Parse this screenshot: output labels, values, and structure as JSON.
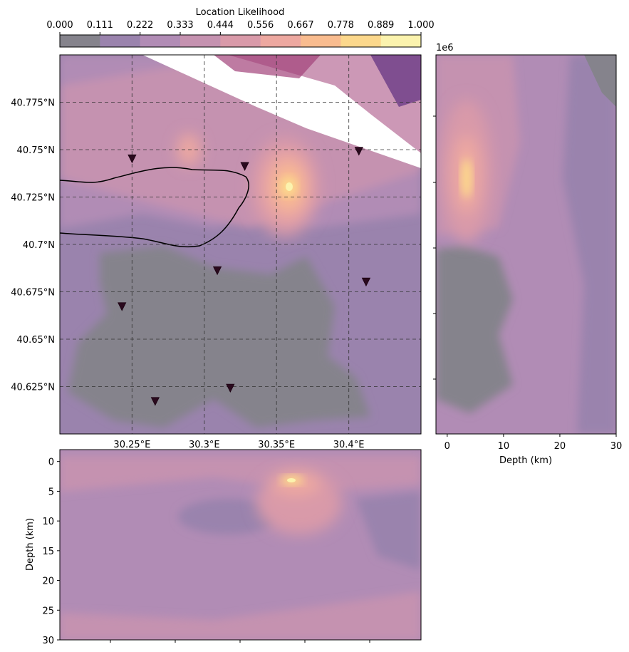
{
  "chart_data": [
    {
      "type": "heatmap",
      "panel": "map-view",
      "title": "",
      "colorbar": {
        "label": "Location Likelihood",
        "ticks": [
          "0.000",
          "0.111",
          "0.222",
          "0.333",
          "0.444",
          "0.556",
          "0.667",
          "0.778",
          "0.889",
          "1.000"
        ],
        "level_colors": [
          "#85838c",
          "#9a83ad",
          "#b18cb5",
          "#c592b0",
          "#d99aa9",
          "#eda8a0",
          "#f9bc8f",
          "#fcd88c",
          "#fbf3ae"
        ],
        "placement": "top"
      },
      "x_ticks": [
        "30.25°E",
        "30.3°E",
        "30.35°E",
        "30.4°E"
      ],
      "y_ticks": [
        "40.775°N",
        "40.75°N",
        "40.725°N",
        "40.7°N",
        "40.675°N",
        "40.65°N",
        "40.625°N"
      ],
      "xlim": [
        30.2,
        30.45
      ],
      "ylim": [
        40.6,
        40.8
      ],
      "grid": true,
      "peak": {
        "lon": 30.357,
        "lat": 40.73,
        "value": 1.0
      },
      "stations": [
        {
          "lon": 30.25,
          "lat": 40.745
        },
        {
          "lon": 30.328,
          "lat": 40.741
        },
        {
          "lon": 30.407,
          "lat": 40.749
        },
        {
          "lon": 30.309,
          "lat": 40.686
        },
        {
          "lon": 30.412,
          "lat": 40.68
        },
        {
          "lon": 30.243,
          "lat": 40.667
        },
        {
          "lon": 30.318,
          "lat": 40.624
        },
        {
          "lon": 30.266,
          "lat": 40.617
        }
      ]
    },
    {
      "type": "heatmap",
      "panel": "latitude-depth-section",
      "xlabel": "Depth (km)",
      "x_ticks": [
        "0",
        "10",
        "20",
        "30"
      ],
      "xlim": [
        -2,
        30
      ],
      "offset_label": "1e6",
      "peak": {
        "depth": 3.2,
        "value": 1.0
      }
    },
    {
      "type": "heatmap",
      "panel": "longitude-depth-section",
      "ylabel": "Depth (km)",
      "y_ticks": [
        "0",
        "5",
        "10",
        "15",
        "20",
        "25",
        "30"
      ],
      "ylim": [
        30,
        -2
      ],
      "peak": {
        "depth": 3.2,
        "value": 1.0
      }
    }
  ]
}
